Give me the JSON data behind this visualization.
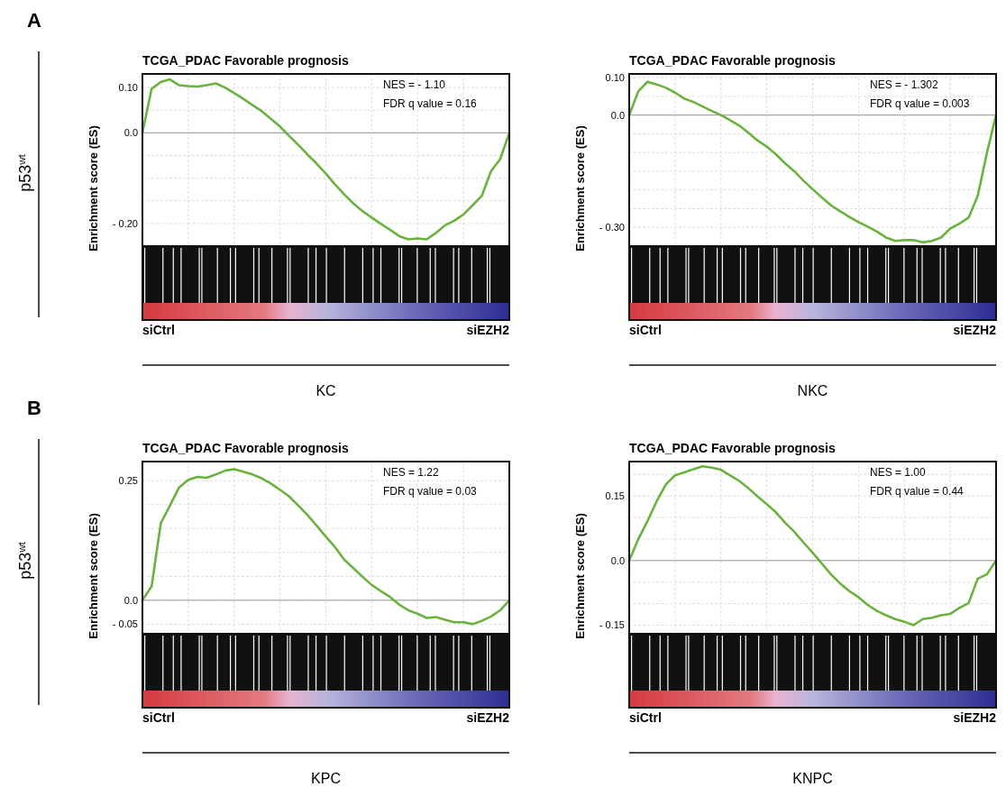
{
  "chart_data": [
    {
      "type": "line",
      "title": "TCGA_PDAC Favorable prognosis",
      "ylabel": "Enrichment score (ES)",
      "xlabel": "KC",
      "annotations": [
        "NES = - 1.10",
        "FDR q value = 0.16",
        "siCtrl",
        "siEZH2",
        "A",
        "p53$^{wt}$"
      ],
      "categories": [
        null,
        null,
        null,
        null,
        null,
        null,
        null,
        null,
        null,
        null,
        null,
        null,
        null,
        null,
        null,
        null,
        null,
        null,
        null,
        null,
        null,
        null,
        null,
        null,
        null,
        null,
        null,
        null,
        null,
        null,
        null,
        null,
        null,
        null,
        null,
        null,
        null,
        null,
        null,
        null,
        null
      ],
      "series": [
        {
          "color": "#6ab23e",
          "values": [
            0.0,
            0.097,
            0.112,
            0.118,
            0.105,
            0.103,
            0.102,
            0.105,
            0.109,
            0.1,
            0.088,
            0.075,
            0.061,
            0.048,
            0.031,
            0.014,
            -0.007,
            -0.027,
            -0.048,
            -0.068,
            -0.09,
            -0.114,
            -0.136,
            -0.156,
            -0.173,
            -0.187,
            -0.201,
            -0.214,
            -0.228,
            -0.235,
            -0.233,
            -0.235,
            -0.221,
            -0.204,
            -0.194,
            -0.18,
            -0.16,
            -0.139,
            -0.085,
            -0.058,
            0.0
          ]
        }
      ],
      "ylim": [
        -0.25,
        0.13
      ],
      "yticks": [
        {
          "value": 0.1,
          "label": "0.10"
        },
        {
          "value": 0.05,
          "label": null
        },
        {
          "value": 0,
          "label": "0.0"
        },
        {
          "value": -0.05,
          "label": null
        },
        {
          "value": -0.1,
          "label": null
        },
        {
          "value": -0.15,
          "label": null
        },
        {
          "value": -0.2,
          "label": "- 0.20"
        }
      ],
      "ref_lines": [
        {
          "axis": "y",
          "value": 0,
          "color": "#999999"
        }
      ],
      "grid": true,
      "tick_labels": "y"
    },
    {
      "type": "line",
      "title": "TCGA_PDAC Favorable prognosis",
      "ylabel": "Enrichment score (ES)",
      "xlabel": "NKC",
      "annotations": [
        "NES = - 1.302",
        "FDR q value = 0.003",
        "siCtrl",
        "siEZH2"
      ],
      "categories": [
        null,
        null,
        null,
        null,
        null,
        null,
        null,
        null,
        null,
        null,
        null,
        null,
        null,
        null,
        null,
        null,
        null,
        null,
        null,
        null,
        null,
        null,
        null,
        null,
        null,
        null,
        null,
        null,
        null,
        null,
        null,
        null,
        null,
        null,
        null,
        null,
        null,
        null,
        null,
        null,
        null
      ],
      "series": [
        {
          "color": "#6ab23e",
          "values": [
            0.0,
            0.064,
            0.089,
            0.082,
            0.073,
            0.06,
            0.044,
            0.035,
            0.023,
            0.011,
            0.0,
            -0.014,
            -0.028,
            -0.047,
            -0.068,
            -0.084,
            -0.105,
            -0.129,
            -0.15,
            -0.175,
            -0.198,
            -0.22,
            -0.241,
            -0.257,
            -0.272,
            -0.286,
            -0.298,
            -0.311,
            -0.327,
            -0.336,
            -0.334,
            -0.334,
            -0.34,
            -0.336,
            -0.327,
            -0.303,
            -0.29,
            -0.274,
            -0.216,
            -0.101,
            0.0
          ]
        }
      ],
      "ylim": [
        -0.35,
        0.11
      ],
      "yticks": [
        {
          "value": 0.1,
          "label": "0.10"
        },
        {
          "value": 0.05,
          "label": null
        },
        {
          "value": 0,
          "label": "0.0"
        },
        {
          "value": -0.05,
          "label": null
        },
        {
          "value": -0.1,
          "label": null
        },
        {
          "value": -0.15,
          "label": null
        },
        {
          "value": -0.2,
          "label": null
        },
        {
          "value": -0.25,
          "label": null
        },
        {
          "value": -0.3,
          "label": "- 0.30"
        }
      ],
      "ref_lines": [
        {
          "axis": "y",
          "value": 0,
          "color": "#999999"
        }
      ],
      "grid": true,
      "tick_labels": "y"
    },
    {
      "type": "line",
      "title": "TCGA_PDAC Favorable prognosis",
      "ylabel": "Enrichment score (ES)",
      "xlabel": "KPC",
      "annotations": [
        "NES = 1.22",
        "FDR q value = 0.03",
        "siCtrl",
        "siEZH2",
        "B",
        "p53$^{wt}$"
      ],
      "categories": [
        null,
        null,
        null,
        null,
        null,
        null,
        null,
        null,
        null,
        null,
        null,
        null,
        null,
        null,
        null,
        null,
        null,
        null,
        null,
        null,
        null,
        null,
        null,
        null,
        null,
        null,
        null,
        null,
        null,
        null,
        null,
        null,
        null,
        null,
        null,
        null,
        null,
        null,
        null,
        null,
        null
      ],
      "series": [
        {
          "color": "#6ab23e",
          "values": [
            0.0,
            0.029,
            0.161,
            0.198,
            0.236,
            0.252,
            0.258,
            0.256,
            0.263,
            0.271,
            0.274,
            0.269,
            0.263,
            0.255,
            0.244,
            0.231,
            0.217,
            0.198,
            0.178,
            0.156,
            0.133,
            0.111,
            0.085,
            0.067,
            0.049,
            0.032,
            0.019,
            0.007,
            -0.009,
            -0.021,
            -0.028,
            -0.037,
            -0.035,
            -0.041,
            -0.046,
            -0.046,
            -0.05,
            -0.043,
            -0.034,
            -0.021,
            0.0
          ]
        }
      ],
      "ylim": [
        -0.07,
        0.29
      ],
      "yticks": [
        {
          "value": 0.25,
          "label": "0.25"
        },
        {
          "value": 0.2,
          "label": null
        },
        {
          "value": 0.15,
          "label": null
        },
        {
          "value": 0.1,
          "label": null
        },
        {
          "value": 0.05,
          "label": null
        },
        {
          "value": 0,
          "label": "0.0"
        },
        {
          "value": -0.05,
          "label": "- 0.05"
        }
      ],
      "ref_lines": [
        {
          "axis": "y",
          "value": 0,
          "color": "#999999"
        }
      ],
      "grid": true,
      "tick_labels": "y"
    },
    {
      "type": "line",
      "title": "TCGA_PDAC Favorable prognosis",
      "ylabel": "Enrichment score (ES)",
      "xlabel": "KNPC",
      "annotations": [
        "NES = 1.00",
        "FDR q value = 0.44",
        "siCtrl",
        "siEZH2"
      ],
      "categories": [
        null,
        null,
        null,
        null,
        null,
        null,
        null,
        null,
        null,
        null,
        null,
        null,
        null,
        null,
        null,
        null,
        null,
        null,
        null,
        null,
        null,
        null,
        null,
        null,
        null,
        null,
        null,
        null,
        null,
        null,
        null,
        null,
        null,
        null,
        null,
        null,
        null,
        null,
        null,
        null,
        null
      ],
      "series": [
        {
          "color": "#6ab23e",
          "values": [
            0.0,
            0.05,
            0.092,
            0.138,
            0.177,
            0.198,
            0.205,
            0.212,
            0.219,
            0.216,
            0.211,
            0.198,
            0.185,
            0.168,
            0.149,
            0.131,
            0.112,
            0.088,
            0.067,
            0.042,
            0.018,
            -0.007,
            -0.032,
            -0.053,
            -0.071,
            -0.085,
            -0.103,
            -0.117,
            -0.127,
            -0.136,
            -0.142,
            -0.15,
            -0.136,
            -0.133,
            -0.127,
            -0.124,
            -0.11,
            -0.099,
            -0.042,
            -0.032,
            0.0
          ]
        }
      ],
      "ylim": [
        -0.17,
        0.23
      ],
      "yticks": [
        {
          "value": 0.2,
          "label": null
        },
        {
          "value": 0.15,
          "label": "0.15"
        },
        {
          "value": 0.1,
          "label": null
        },
        {
          "value": 0.05,
          "label": null
        },
        {
          "value": 0,
          "label": "0.0"
        },
        {
          "value": -0.05,
          "label": null
        },
        {
          "value": -0.1,
          "label": null
        },
        {
          "value": -0.15,
          "label": "- 0.15"
        }
      ],
      "ref_lines": [
        {
          "axis": "y",
          "value": 0,
          "color": "#999999"
        }
      ],
      "grid": true,
      "tick_labels": "y"
    }
  ]
}
